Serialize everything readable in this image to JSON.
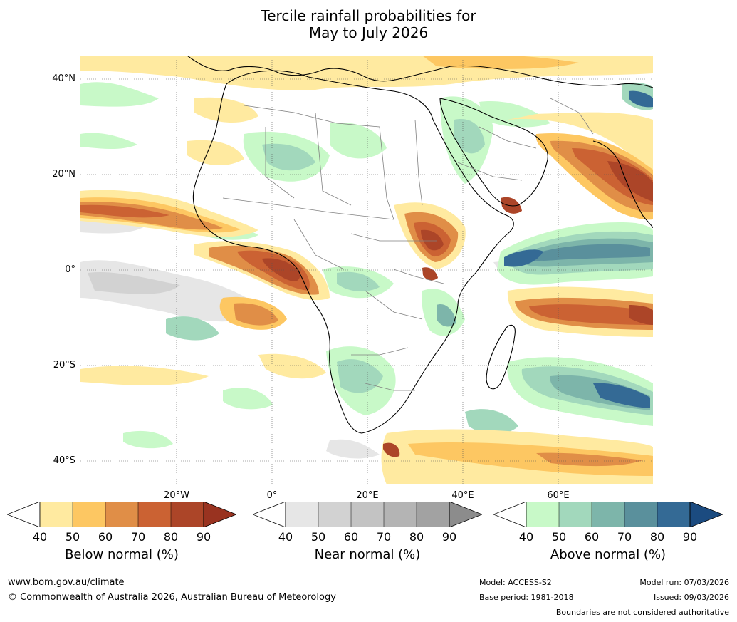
{
  "title": {
    "line1": "Tercile rainfall probabilities for",
    "line2": "May to July 2026"
  },
  "map": {
    "lat_ticks": [
      "40°N",
      "20°N",
      "0°",
      "20°S",
      "40°S"
    ],
    "lon_ticks": [
      "20°W",
      "0°",
      "20°E",
      "40°E",
      "60°E"
    ],
    "ocean_color": "#ffffff",
    "land_outline_color": "#000000",
    "border_color": "#808080"
  },
  "legend": {
    "below": {
      "title": "Below normal (%)",
      "ticks": [
        "40",
        "50",
        "60",
        "70",
        "80",
        "90"
      ],
      "colors": [
        "#ffffff",
        "#ffeaa0",
        "#fdc762",
        "#e08e47",
        "#cb6233",
        "#ac4528",
        "#993320"
      ]
    },
    "near": {
      "title": "Near normal (%)",
      "ticks": [
        "40",
        "50",
        "60",
        "70",
        "80",
        "90"
      ],
      "colors": [
        "#ffffff",
        "#e6e6e6",
        "#d2d2d2",
        "#c3c3c3",
        "#b4b4b4",
        "#a2a2a2",
        "#8c8c8c"
      ]
    },
    "above": {
      "title": "Above normal (%)",
      "ticks": [
        "40",
        "50",
        "60",
        "70",
        "80",
        "90"
      ],
      "colors": [
        "#ffffff",
        "#c8f9c8",
        "#a2d8bc",
        "#7db5aa",
        "#5a909c",
        "#346a95",
        "#1b4b80"
      ]
    }
  },
  "footer": {
    "website": "www.bom.gov.au/climate",
    "copyright": "© Commonwealth of Australia 2026, Australian Bureau of Meteorology",
    "model": "Model: ACCESS-S2",
    "base_period": "Base period: 1981-2018",
    "model_run": "Model run: 07/03/2026",
    "issued": "Issued: 09/03/2026",
    "disclaimer": "Boundaries are not considered authoritative"
  }
}
